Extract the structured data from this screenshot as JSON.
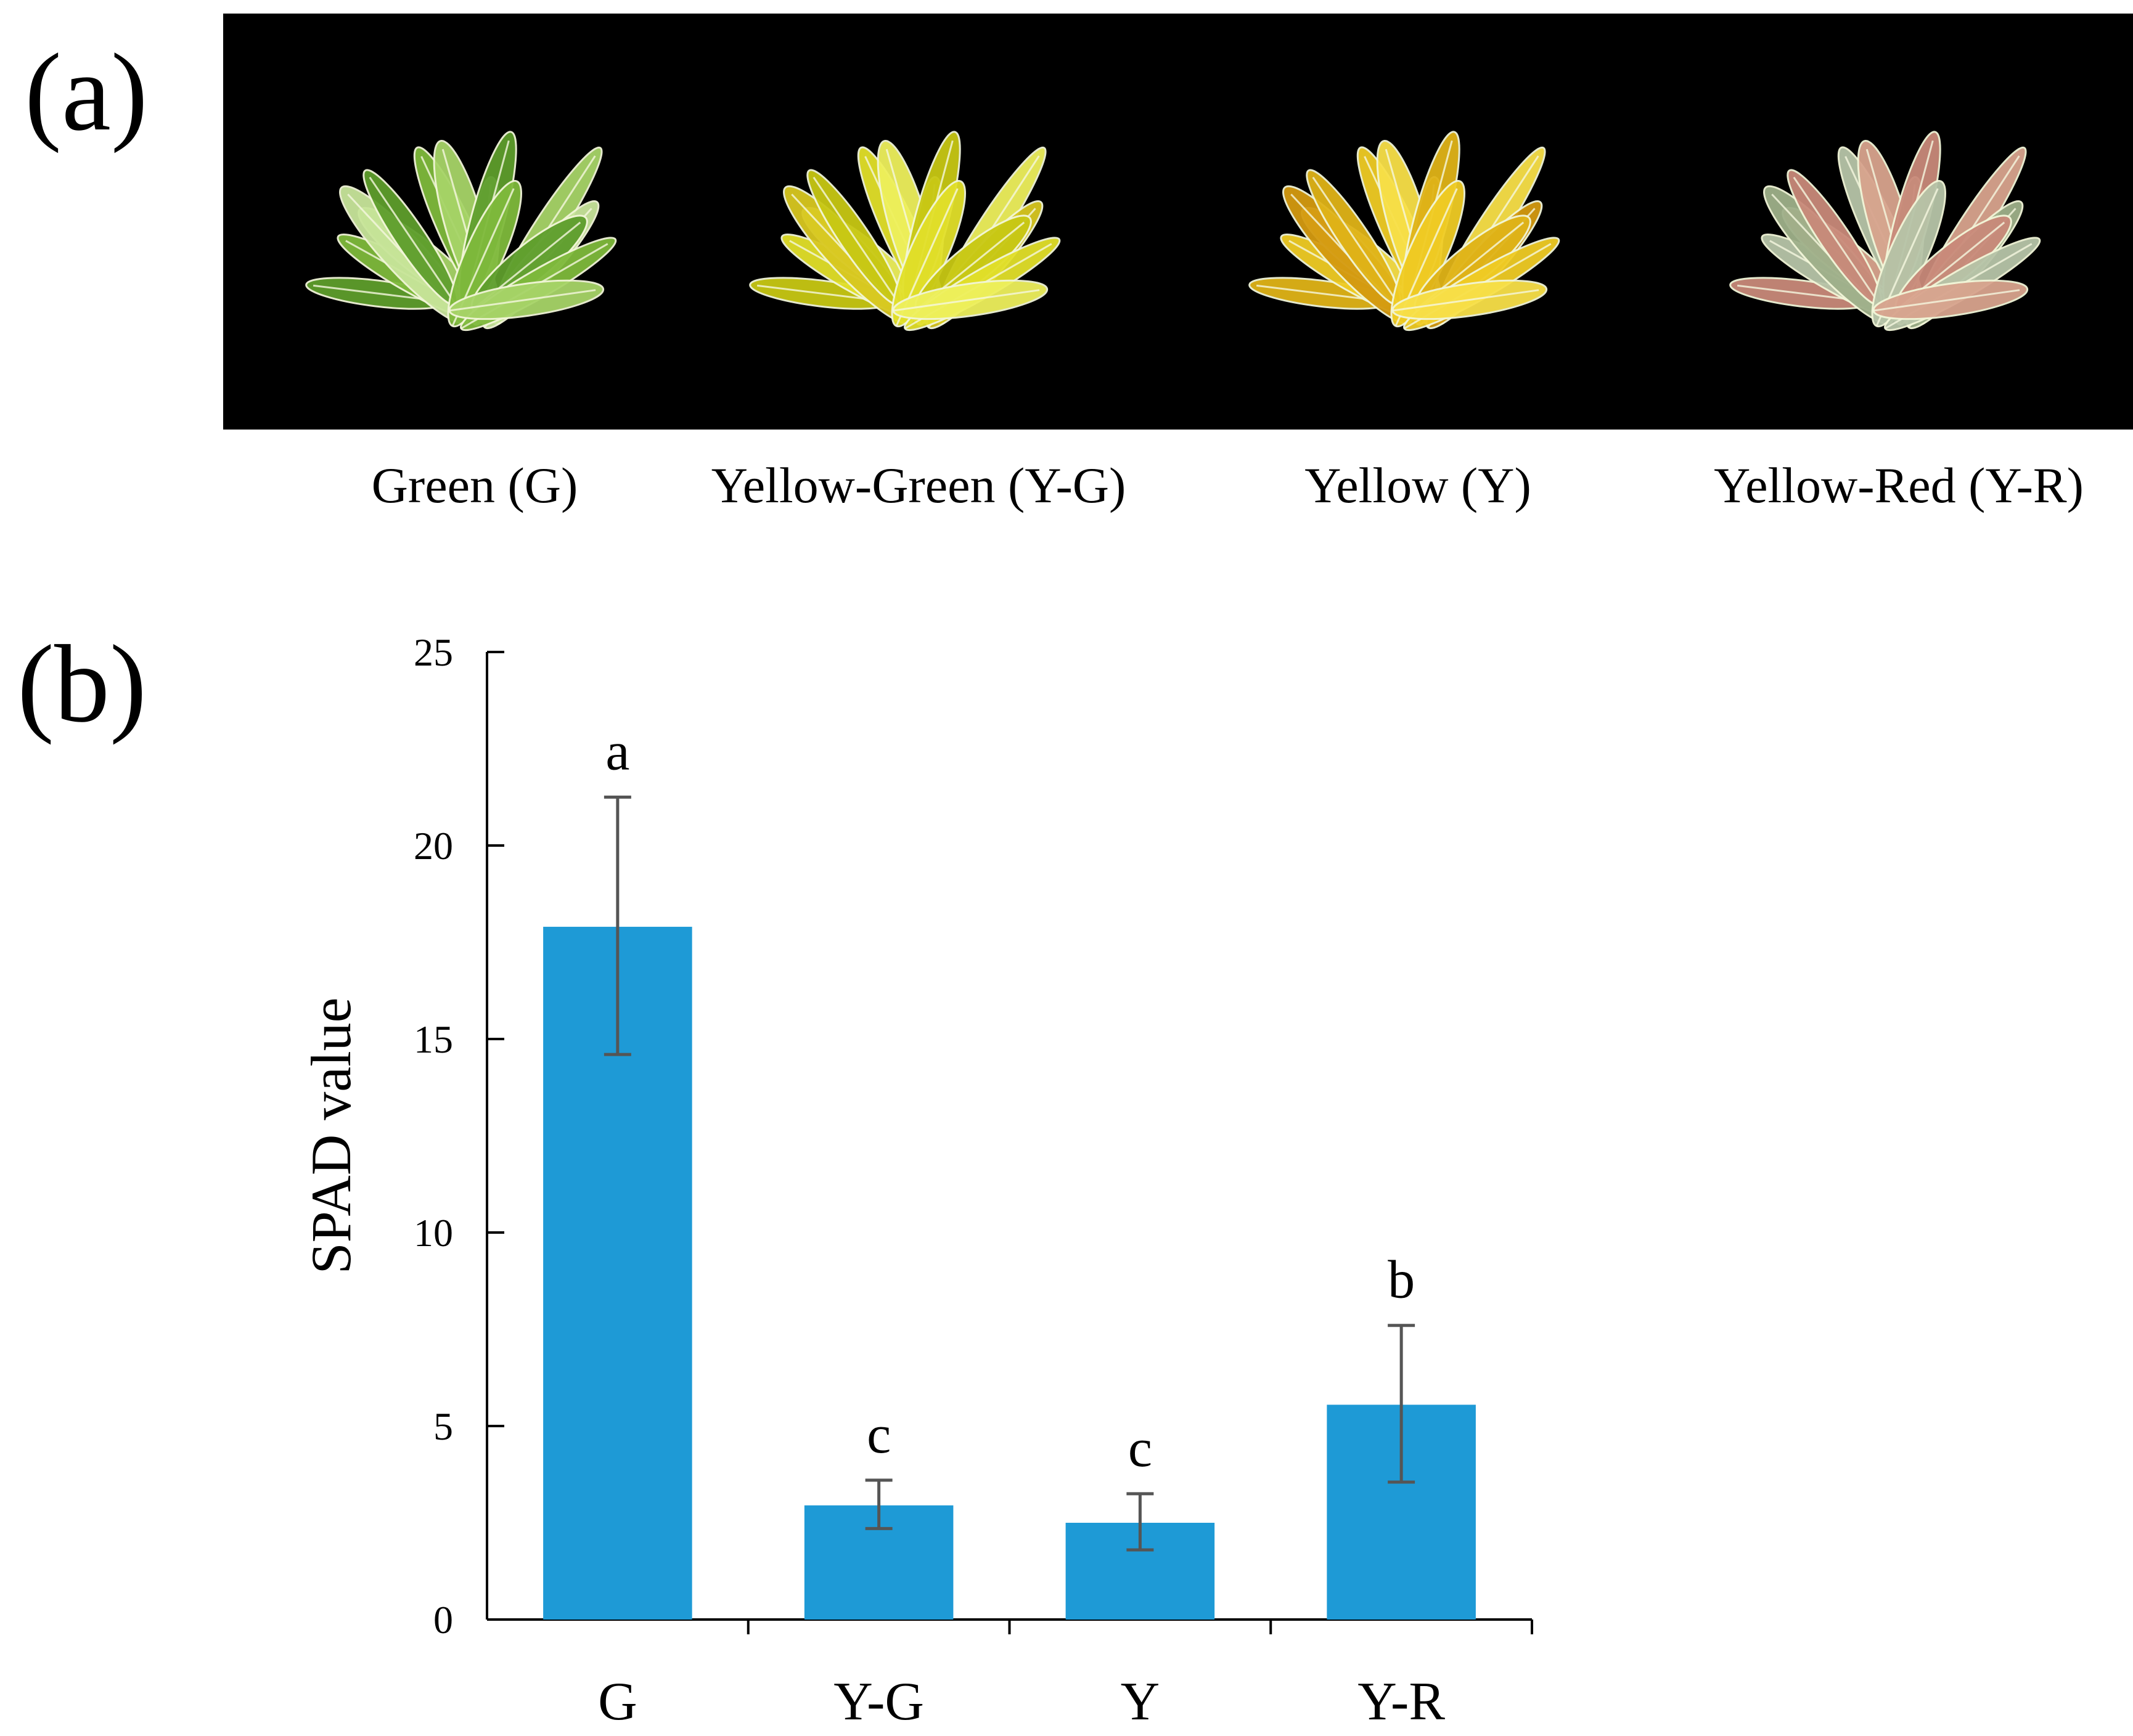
{
  "panels": {
    "a": {
      "label": "(a)",
      "photos": [
        {
          "caption": "Green (G)",
          "palette": [
            "#5e9e2c",
            "#7fba3c",
            "#a7d468",
            "#c8e59a"
          ]
        },
        {
          "caption": "Yellow-Green (Y-G)",
          "palette": [
            "#c8c814",
            "#e2e02a",
            "#eef05c",
            "#d8c820"
          ]
        },
        {
          "caption": "Yellow (Y)",
          "palette": [
            "#e0b418",
            "#f0cc24",
            "#f8e048",
            "#d49a10"
          ]
        },
        {
          "caption": "Yellow-Red (Y-R)",
          "palette": [
            "#c98a7a",
            "#b7c4a8",
            "#d8a48e",
            "#9fb08a"
          ]
        }
      ],
      "background_color": "#000000"
    },
    "b": {
      "label": "(b)"
    }
  },
  "chart_data": {
    "type": "bar",
    "title": "",
    "xlabel": "",
    "ylabel": "SPAD value",
    "ylim": [
      0,
      25
    ],
    "yticks": [
      0,
      5,
      10,
      15,
      20,
      25
    ],
    "categories": [
      "G",
      "Y-G",
      "Y",
      "Y-R"
    ],
    "values": [
      17.9,
      2.95,
      2.5,
      5.55
    ],
    "error_low": [
      14.6,
      2.35,
      1.8,
      3.55
    ],
    "error_high": [
      21.25,
      3.6,
      3.25,
      7.6
    ],
    "significance_letters": [
      "a",
      "c",
      "c",
      "b"
    ],
    "bar_color": "#1e9ad6",
    "errorbar_color": "#555555",
    "grid": false,
    "legend": false
  }
}
